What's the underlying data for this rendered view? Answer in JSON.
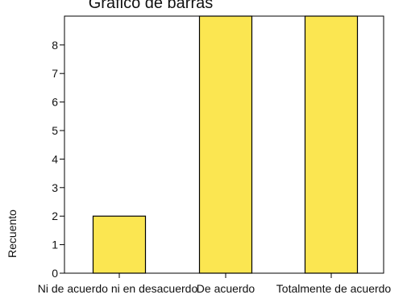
{
  "chart_data": {
    "type": "bar",
    "title": "Gráfico de barras",
    "ylabel": "Recuento",
    "xlabel": "",
    "categories": [
      "Ni de acuerdo ni en desacuerdo",
      "De acuerdo",
      "Totalmente de acuerdo"
    ],
    "values": [
      2,
      9,
      9
    ],
    "ylim": [
      0,
      9
    ],
    "yticks": [
      "0",
      "1",
      "2",
      "3",
      "4",
      "5",
      "6",
      "7",
      "8"
    ],
    "grid": false,
    "legend": "none",
    "bar_color": "#FBE651",
    "bar_edge_color": "#000000"
  }
}
